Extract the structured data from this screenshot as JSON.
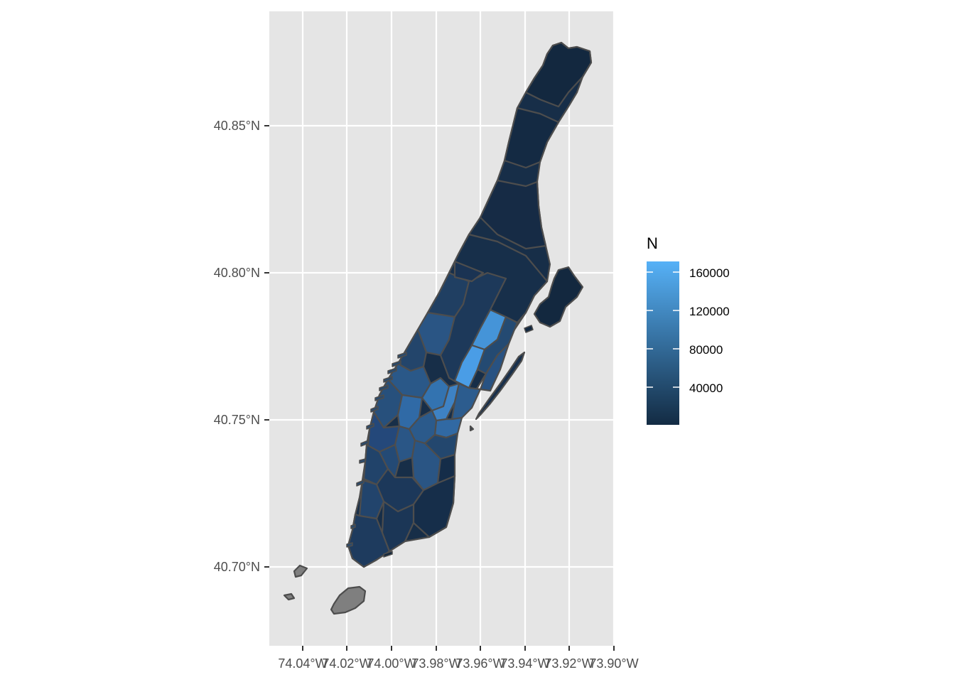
{
  "map": {
    "x_ticks": [
      "74.04°W",
      "74.02°W",
      "74.00°W",
      "73.98°W",
      "73.96°W",
      "73.94°W",
      "73.92°W",
      "73.90°W"
    ],
    "y_ticks": [
      "40.70°N",
      "40.75°N",
      "40.80°N",
      "40.85°N"
    ],
    "panel_background": "#e5e5e5",
    "grid_color": "#ffffff",
    "border_color": "#4d4d4d",
    "na_fill": "#7f7f7f"
  },
  "legend": {
    "title": "N",
    "labels": [
      "160000",
      "120000",
      "80000",
      "40000"
    ],
    "color_low": "#132b43",
    "color_high": "#56b1f7"
  }
}
